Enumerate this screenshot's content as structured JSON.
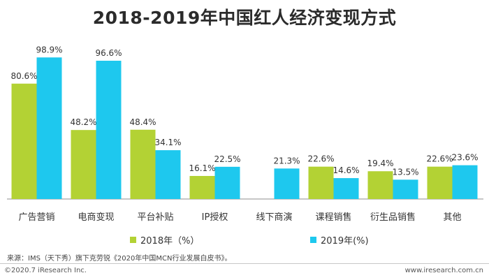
{
  "chart_data": {
    "type": "bar",
    "title": "2018-2019年中国红人经济变现方式",
    "categories": [
      "广告营销",
      "电商变现",
      "平台补贴",
      "IP授权",
      "线下商演",
      "课程销售",
      "衍生品销售",
      "其他"
    ],
    "series": [
      {
        "name": "2018年（%）",
        "values": [
          80.6,
          48.2,
          48.4,
          16.1,
          null,
          22.6,
          19.4,
          22.6
        ],
        "labels": [
          "80.6%",
          "48.2%",
          "48.4%",
          "16.1%",
          "",
          "22.6%",
          "19.4%",
          "22.6%"
        ],
        "color": "#b3d234"
      },
      {
        "name": "2019年(%)",
        "values": [
          98.9,
          96.6,
          34.1,
          22.5,
          21.3,
          14.6,
          13.5,
          23.6
        ],
        "labels": [
          "98.9%",
          "96.6%",
          "34.1%",
          "22.5%",
          "21.3%",
          "14.6%",
          "13.5%",
          "23.6%"
        ],
        "color": "#1ec8ee"
      }
    ],
    "ylim": [
      0,
      100
    ],
    "grid": false,
    "legend_position": "bottom"
  },
  "footer": {
    "source": "来源：IMS（天下秀）旗下克劳锐《2020年中国MCN行业发展白皮书》。",
    "copyright": "©2020.7 iResearch Inc.",
    "site": "www.iresearch.com.cn"
  }
}
